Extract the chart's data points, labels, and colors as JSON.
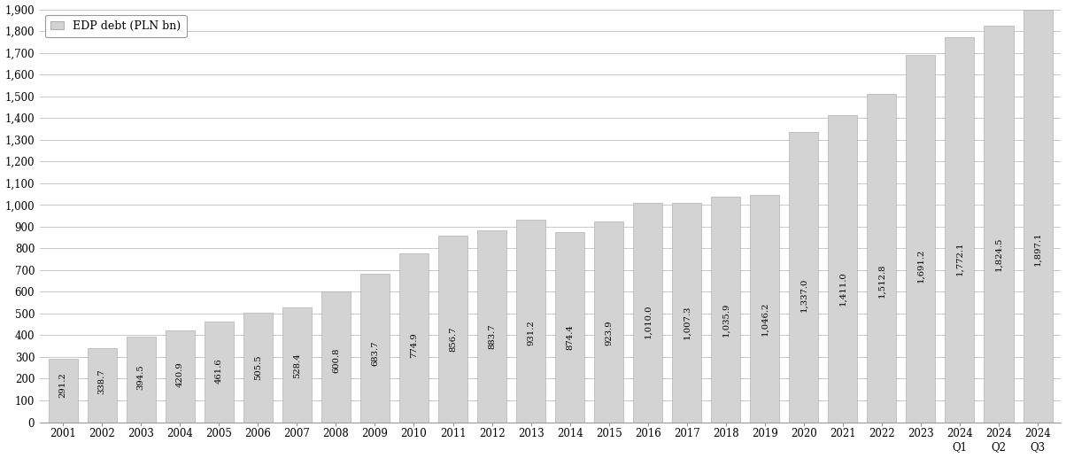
{
  "categories": [
    "2001",
    "2002",
    "2003",
    "2004",
    "2005",
    "2006",
    "2007",
    "2008",
    "2009",
    "2010",
    "2011",
    "2012",
    "2013",
    "2014",
    "2015",
    "2016",
    "2017",
    "2018",
    "2019",
    "2020",
    "2021",
    "2022",
    "2023",
    "2024\nQ1",
    "2024\nQ2",
    "2024\nQ3"
  ],
  "values": [
    291.2,
    338.7,
    394.5,
    420.9,
    461.6,
    505.5,
    528.4,
    600.8,
    683.7,
    774.9,
    856.7,
    883.7,
    931.2,
    874.4,
    923.9,
    1010.0,
    1007.3,
    1035.9,
    1046.2,
    1337.0,
    1411.0,
    1512.8,
    1691.2,
    1772.1,
    1824.5,
    1897.1
  ],
  "bar_color": "#d3d3d3",
  "bar_edgecolor": "#b0b0b0",
  "legend_label": "EDP debt (PLN bn)",
  "legend_facecolor": "#d3d3d3",
  "legend_edgecolor": "#b0b0b0",
  "ylim": [
    0,
    1900
  ],
  "yticks": [
    0,
    100,
    200,
    300,
    400,
    500,
    600,
    700,
    800,
    900,
    1000,
    1100,
    1200,
    1300,
    1400,
    1500,
    1600,
    1700,
    1800,
    1900
  ],
  "ytick_labels": [
    "0",
    "100",
    "200",
    "300",
    "400",
    "500",
    "600",
    "700",
    "800",
    "900",
    "1,000",
    "1,100",
    "1,200",
    "1,300",
    "1,400",
    "1,500",
    "1,600",
    "1,700",
    "1,800",
    "1,900"
  ],
  "grid_color": "#c8c8c8",
  "background_color": "#ffffff",
  "label_fontsize": 7.2,
  "tick_fontsize": 8.5,
  "legend_fontsize": 9
}
